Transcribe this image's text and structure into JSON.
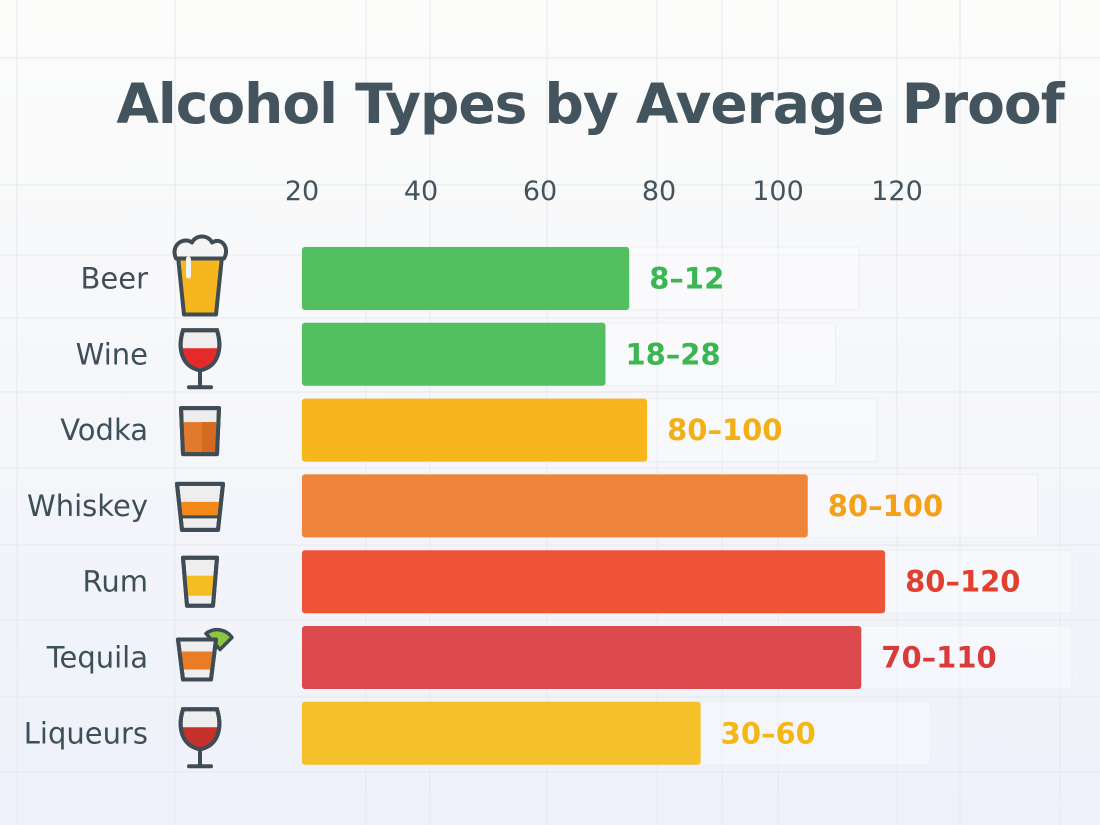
{
  "chart_data": {
    "type": "bar",
    "orientation": "horizontal",
    "title": "Alcohol Types by Average Proof",
    "xlabel": "",
    "ylabel": "",
    "xlim": [
      20,
      120
    ],
    "x_ticks": [
      "20",
      "40",
      "60",
      "80",
      "100",
      "120"
    ],
    "x_tick_values": [
      20,
      40,
      60,
      80,
      100,
      120
    ],
    "axis_position": "top",
    "grid": true,
    "categories": [
      "Beer",
      "Wine",
      "Vodka",
      "Whiskey",
      "Rum",
      "Tequila",
      "Liqueurs"
    ],
    "values": [
      75,
      71,
      78,
      105,
      118,
      114,
      87
    ],
    "data_labels": [
      "8–12",
      "18–28",
      "80–100",
      "80–100",
      "80–120",
      "70–110",
      "30–60"
    ],
    "bar_colors": [
      "#52c060",
      "#52c060",
      "#f7b61b",
      "#ee853a",
      "#ef5338",
      "#dd4a4e",
      "#f4c12a"
    ],
    "label_colors": [
      "#3cb653",
      "#3cb653",
      "#f4ae16",
      "#f4a117",
      "#e2402f",
      "#d93a3c",
      "#f4b718"
    ],
    "icons": [
      "beer-mug-icon",
      "wine-glass-icon",
      "vodka-glass-icon",
      "whiskey-glass-icon",
      "rum-shot-icon",
      "tequila-shot-icon",
      "liqueur-glass-icon"
    ]
  }
}
